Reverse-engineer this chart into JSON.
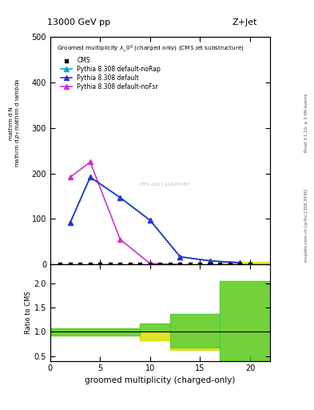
{
  "title_top": "13000 GeV pp",
  "title_right": "Z+Jet",
  "main_title": "Groomed multiplicity $\\lambda\\_0^0$ (charged only) (CMS jet substructure)",
  "ylabel_main": "$\\frac{1}{\\mathrm{mathrm}\\,\\mathrm{d}N}$",
  "ylabel_ratio": "Ratio to CMS",
  "xlabel": "groomed multiplicity (charged-only)",
  "right_label": "mcplots.cern.ch [arXiv:1306.3436]",
  "rivet_label": "Rivet 3.1.10, ≥ 3.4M events",
  "watermark": "CMS-2021-JA320187",
  "cms_x": [
    1,
    2,
    3,
    4,
    5,
    6,
    7,
    8,
    9,
    10,
    11,
    12,
    13,
    14,
    15,
    16,
    17,
    18,
    19,
    20
  ],
  "cms_y": [
    0,
    0,
    0,
    0,
    0,
    0,
    0,
    0,
    0,
    0,
    0,
    0,
    0,
    0,
    0,
    0,
    0,
    0,
    0,
    0
  ],
  "default_x": [
    2,
    4,
    7,
    10,
    13,
    16,
    19
  ],
  "default_y": [
    92,
    192,
    147,
    97,
    17,
    8,
    4
  ],
  "noFsr_x": [
    2,
    4,
    7,
    10,
    13
  ],
  "noFsr_y": [
    192,
    225,
    55,
    2,
    0
  ],
  "noRap_x": [
    2,
    4,
    7,
    10,
    13,
    16,
    19
  ],
  "noRap_y": [
    92,
    192,
    147,
    97,
    17,
    8,
    4
  ],
  "ratio_bins_green": [
    [
      0,
      9
    ],
    [
      9,
      12
    ],
    [
      12,
      17
    ],
    [
      17,
      22
    ]
  ],
  "ratio_green_lo": [
    0.93,
    1.0,
    0.68,
    0.4
  ],
  "ratio_green_hi": [
    1.07,
    1.18,
    1.38,
    2.05
  ],
  "ratio_bins_yellow": [
    [
      0,
      9
    ],
    [
      9,
      12
    ],
    [
      12,
      17
    ],
    [
      17,
      22
    ]
  ],
  "ratio_yellow_lo": [
    0.93,
    0.82,
    0.63,
    0.4
  ],
  "ratio_yellow_hi": [
    1.07,
    1.18,
    1.38,
    2.05
  ],
  "ylim_main": [
    0,
    500
  ],
  "ylim_ratio": [
    0.4,
    2.4
  ],
  "xlim": [
    0,
    22
  ],
  "color_cms": "#000000",
  "color_default": "#3333cc",
  "color_noFsr": "#cc33cc",
  "color_noRap": "#00aacc",
  "color_green": "#44cc44",
  "color_yellow": "#dddd00",
  "legend_cms": "CMS",
  "legend_default": "Pythia 8.308 default",
  "legend_noFsr": "Pythia 8.308 default-noFsr",
  "legend_noRap": "Pythia 8.308 default-noRap",
  "yticks_main": [
    0,
    100,
    200,
    300,
    400,
    500
  ],
  "yticks_ratio": [
    0.5,
    1.0,
    1.5,
    2.0
  ],
  "xticks": [
    0,
    5,
    10,
    15,
    20
  ]
}
